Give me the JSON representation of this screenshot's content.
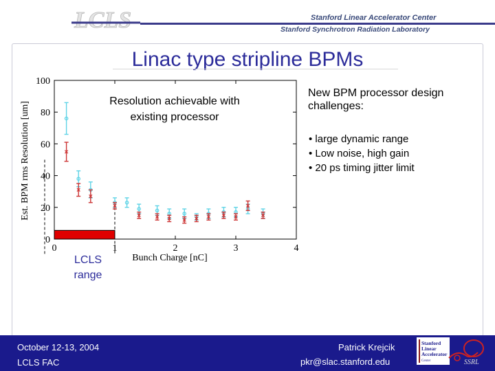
{
  "header": {
    "logo_text": "LCLS",
    "org_line1": "Stanford Linear Accelerator Center",
    "org_line2": "Stanford Synchrotron Radiation Laboratory"
  },
  "slide": {
    "title": "Linac type stripline BPMs",
    "right_heading": "New BPM processor design challenges:",
    "bullets": [
      "• large dynamic range",
      "• Low noise, high gain",
      "• 20 ps timing jitter limit"
    ],
    "range_label": [
      "LCLS",
      "range"
    ]
  },
  "footer": {
    "date": "October 12-13, 2004",
    "org": "LCLS FAC",
    "author": "Patrick Krejcik",
    "email": "pkr@slac.stanford.edu",
    "slac_logo": [
      "Stanford",
      "Linear",
      "Accelerator",
      "Center"
    ],
    "ssrl_logo": "SSRL"
  },
  "colors": {
    "title": "#2c2c9a",
    "footer_bg": "#1a1a8c",
    "series_cyan": "#5fd3e6",
    "series_red": "#cc3333",
    "range_bar": "#e00000"
  },
  "chart_data": {
    "type": "scatter",
    "title": "",
    "annotation": "Resolution achievable with existing processor",
    "xlabel": "Bunch Charge [nC]",
    "ylabel": "Est. BPM rms Resolution [um]",
    "xlim": [
      0,
      4
    ],
    "ylim": [
      0,
      100
    ],
    "xticks": [
      "0",
      "1",
      "2",
      "3",
      "4"
    ],
    "yticks": [
      "0",
      "20",
      "40",
      "60",
      "80",
      "100"
    ],
    "grid": false,
    "legend": "none",
    "series": [
      {
        "color": "#5fd3e6",
        "x": [
          0.2,
          0.4,
          0.6,
          1.0,
          1.2,
          1.4,
          1.7,
          1.9,
          2.15,
          2.35,
          2.55,
          2.8,
          3.0,
          3.2,
          3.45
        ],
        "y": [
          76,
          38,
          31,
          23,
          23,
          19,
          18,
          16,
          16,
          14,
          16,
          17,
          17,
          19,
          16
        ],
        "err": [
          10,
          5,
          5,
          3,
          3,
          3,
          3,
          3,
          3,
          2,
          3,
          3,
          3,
          3,
          3
        ]
      },
      {
        "color": "#cc3333",
        "x": [
          0.2,
          0.4,
          0.6,
          1.0,
          1.4,
          1.7,
          1.9,
          2.15,
          2.35,
          2.55,
          2.8,
          3.0,
          3.2,
          3.45
        ],
        "y": [
          55,
          31,
          27,
          21,
          15,
          14,
          13,
          12,
          13,
          14,
          15,
          14,
          21,
          15
        ],
        "err": [
          6,
          4,
          4,
          2,
          2,
          2,
          2,
          2,
          2,
          2,
          2,
          2,
          3,
          2
        ]
      }
    ],
    "range_band": {
      "x": [
        0,
        1
      ],
      "y": [
        0,
        5.5
      ]
    }
  }
}
